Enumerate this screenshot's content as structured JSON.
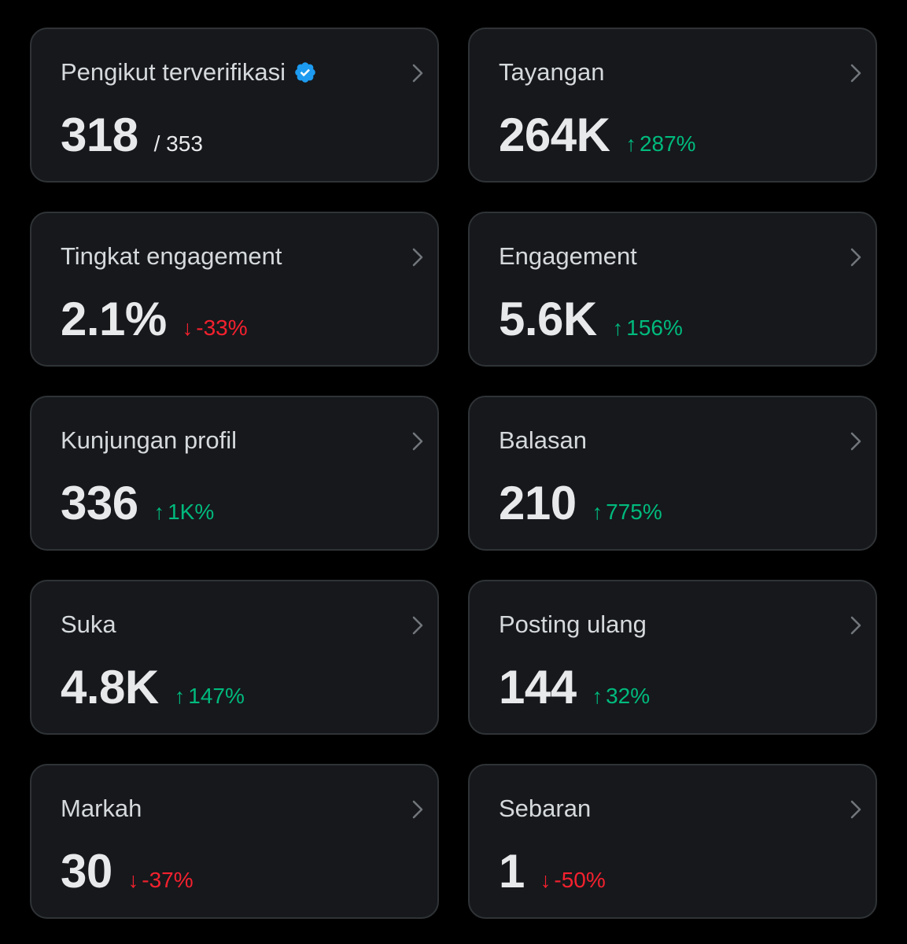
{
  "colors": {
    "background": "#000000",
    "card": "#16181c",
    "border": "#2f3336",
    "up": "#00ba7c",
    "down": "#f4212e",
    "verified": "#1d9bf0"
  },
  "cards": [
    {
      "title": "Pengikut terverifikasi",
      "value": "318",
      "secondary": "/ 353",
      "verified_icon": "verified-badge-icon",
      "chevron_icon": "chevron-right-icon"
    },
    {
      "title": "Tayangan",
      "value": "264K",
      "change": {
        "direction": "up",
        "arrow": "↑",
        "text": "287%"
      },
      "chevron_icon": "chevron-right-icon"
    },
    {
      "title": "Tingkat engagement",
      "value": "2.1%",
      "change": {
        "direction": "down",
        "arrow": "↓",
        "text": "-33%"
      },
      "chevron_icon": "chevron-right-icon"
    },
    {
      "title": "Engagement",
      "value": "5.6K",
      "change": {
        "direction": "up",
        "arrow": "↑",
        "text": "156%"
      },
      "chevron_icon": "chevron-right-icon"
    },
    {
      "title": "Kunjungan profil",
      "value": "336",
      "change": {
        "direction": "up",
        "arrow": "↑",
        "text": "1K%"
      },
      "chevron_icon": "chevron-right-icon"
    },
    {
      "title": "Balasan",
      "value": "210",
      "change": {
        "direction": "up",
        "arrow": "↑",
        "text": "775%"
      },
      "chevron_icon": "chevron-right-icon"
    },
    {
      "title": "Suka",
      "value": "4.8K",
      "change": {
        "direction": "up",
        "arrow": "↑",
        "text": "147%"
      },
      "chevron_icon": "chevron-right-icon"
    },
    {
      "title": "Posting ulang",
      "value": "144",
      "change": {
        "direction": "up",
        "arrow": "↑",
        "text": "32%"
      },
      "chevron_icon": "chevron-right-icon"
    },
    {
      "title": "Markah",
      "value": "30",
      "change": {
        "direction": "down",
        "arrow": "↓",
        "text": "-37%"
      },
      "chevron_icon": "chevron-right-icon"
    },
    {
      "title": "Sebaran",
      "value": "1",
      "change": {
        "direction": "down",
        "arrow": "↓",
        "text": "-50%"
      },
      "chevron_icon": "chevron-right-icon"
    }
  ]
}
